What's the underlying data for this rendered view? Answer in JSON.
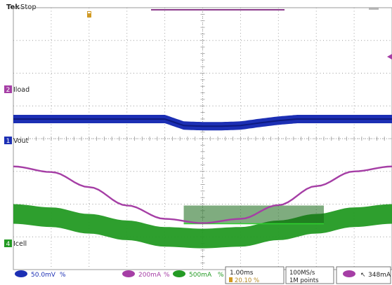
{
  "header": {
    "brand": "Tek",
    "status": "Stop"
  },
  "colors": {
    "grid": "#9a9a9a",
    "ch2": "#a53ea5",
    "ch1": "#1c2fb4",
    "ch4": "#239a23",
    "ch4_dark": "#156815",
    "marker": "#d29a20",
    "status_text": "#b58a20"
  },
  "chart_data": {
    "type": "line",
    "title": "",
    "grid": true,
    "divisions": {
      "x": 10,
      "y": 8
    },
    "series": [
      {
        "name": "Iload",
        "channel": "2",
        "color": "#a53ea5",
        "x": [
          0,
          1,
          2,
          3,
          4,
          5,
          6,
          7,
          8,
          9,
          10
        ],
        "y": [
          3.75,
          3.58,
          3.12,
          2.56,
          2.15,
          2.02,
          2.15,
          2.57,
          3.15,
          3.6,
          3.75
        ]
      },
      {
        "name": "Vout",
        "channel": "1",
        "color": "#1c2fb4",
        "x": [
          0,
          0.5,
          1,
          1.5,
          2,
          2.5,
          3,
          3.5,
          4,
          4.5,
          5,
          5.5,
          6,
          6.5,
          7,
          7.5,
          8,
          8.5,
          9,
          9.5,
          10
        ],
        "y": [
          0,
          0,
          0,
          0,
          0,
          0,
          0,
          0,
          0,
          -0.2,
          -0.22,
          -0.22,
          -0.2,
          -0.12,
          -0.05,
          0,
          0,
          0,
          0,
          0,
          0
        ]
      },
      {
        "name": "Icell",
        "channel": "4",
        "color": "#239a23",
        "x": [
          0,
          1,
          2,
          3,
          4,
          5,
          6,
          7,
          8,
          9,
          10
        ],
        "y": [
          1.7,
          1.6,
          1.4,
          1.2,
          1.0,
          0.95,
          1.0,
          1.2,
          1.4,
          1.6,
          1.7
        ]
      }
    ]
  },
  "channel_labels": [
    {
      "num": "2",
      "name": "Iload"
    },
    {
      "num": "1",
      "name": "Vout"
    },
    {
      "num": "4",
      "name": "Icell"
    }
  ],
  "status_bar": {
    "ch1": {
      "scale": "50.0mV",
      "coupling": "%"
    },
    "ch2": {
      "scale": "200mA",
      "coupling": "%"
    },
    "ch4": {
      "scale": "500mA",
      "coupling": "%"
    },
    "timebase": "1.00ms",
    "trigger_position": "20.10 %",
    "sample_rate": "100MS/s",
    "record_length": "1M points",
    "trigger_level": "348mA"
  }
}
